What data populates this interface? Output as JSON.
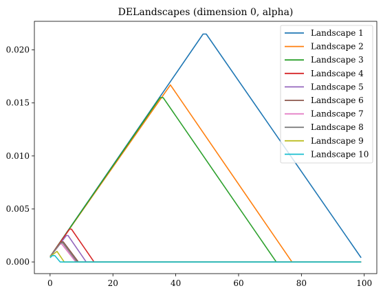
{
  "chart_data": {
    "type": "line",
    "title": "DELandscapes (dimension 0, alpha)",
    "xlabel": "",
    "ylabel": "",
    "xlim": [
      -5,
      104
    ],
    "ylim": [
      -0.0011,
      0.0227
    ],
    "xticks": [
      0,
      20,
      40,
      60,
      80,
      100
    ],
    "yticks": [
      0.0,
      0.005,
      0.01,
      0.015,
      0.02
    ],
    "xtick_labels": [
      "0",
      "20",
      "40",
      "60",
      "80",
      "100"
    ],
    "ytick_labels": [
      "0.000",
      "0.005",
      "0.010",
      "0.015",
      "0.020"
    ],
    "grid": false,
    "legend_position": "top-right",
    "series": [
      {
        "name": "Landscape 1",
        "color": "#1f77b4",
        "x": [
          0,
          48.7,
          49.7,
          99
        ],
        "y": [
          0.0005,
          0.0215,
          0.0215,
          0.0004
        ]
      },
      {
        "name": "Landscape 2",
        "color": "#ff7f0e",
        "x": [
          0,
          38.3,
          77,
          99
        ],
        "y": [
          0.0005,
          0.0167,
          0.0,
          0.0
        ]
      },
      {
        "name": "Landscape 3",
        "color": "#2ca02c",
        "x": [
          0,
          35,
          36,
          72,
          99
        ],
        "y": [
          0.0005,
          0.0155,
          0.0155,
          0.0,
          0.0
        ]
      },
      {
        "name": "Landscape 4",
        "color": "#d62728",
        "x": [
          0,
          6.2,
          6.8,
          14,
          99
        ],
        "y": [
          0.0005,
          0.0031,
          0.0031,
          0.0,
          0.0
        ]
      },
      {
        "name": "Landscape 5",
        "color": "#9467bd",
        "x": [
          0,
          5.2,
          5.7,
          11.5,
          99
        ],
        "y": [
          0.0005,
          0.0025,
          0.0025,
          0.0,
          0.0
        ]
      },
      {
        "name": "Landscape 6",
        "color": "#8c564b",
        "x": [
          0,
          3.6,
          4.2,
          9,
          99
        ],
        "y": [
          0.0005,
          0.0019,
          0.0019,
          0.0,
          0.0
        ]
      },
      {
        "name": "Landscape 7",
        "color": "#e377c2",
        "x": [
          0,
          3.2,
          3.7,
          8.2,
          99
        ],
        "y": [
          0.0005,
          0.0017,
          0.0017,
          0.0,
          0.0
        ]
      },
      {
        "name": "Landscape 8",
        "color": "#7f7f7f",
        "x": [
          0,
          3.4,
          4.0,
          8.6,
          99
        ],
        "y": [
          0.0005,
          0.0018,
          0.0018,
          0.0,
          0.0
        ]
      },
      {
        "name": "Landscape 9",
        "color": "#bcbd22",
        "x": [
          0,
          2.2,
          4.5,
          99
        ],
        "y": [
          0.0005,
          0.001,
          0.0,
          0.0
        ]
      },
      {
        "name": "Landscape 10",
        "color": "#17becf",
        "x": [
          0,
          0.7,
          1.5,
          3.2,
          99
        ],
        "y": [
          0.0004,
          0.0006,
          0.0006,
          0.0,
          0.0
        ]
      }
    ]
  }
}
